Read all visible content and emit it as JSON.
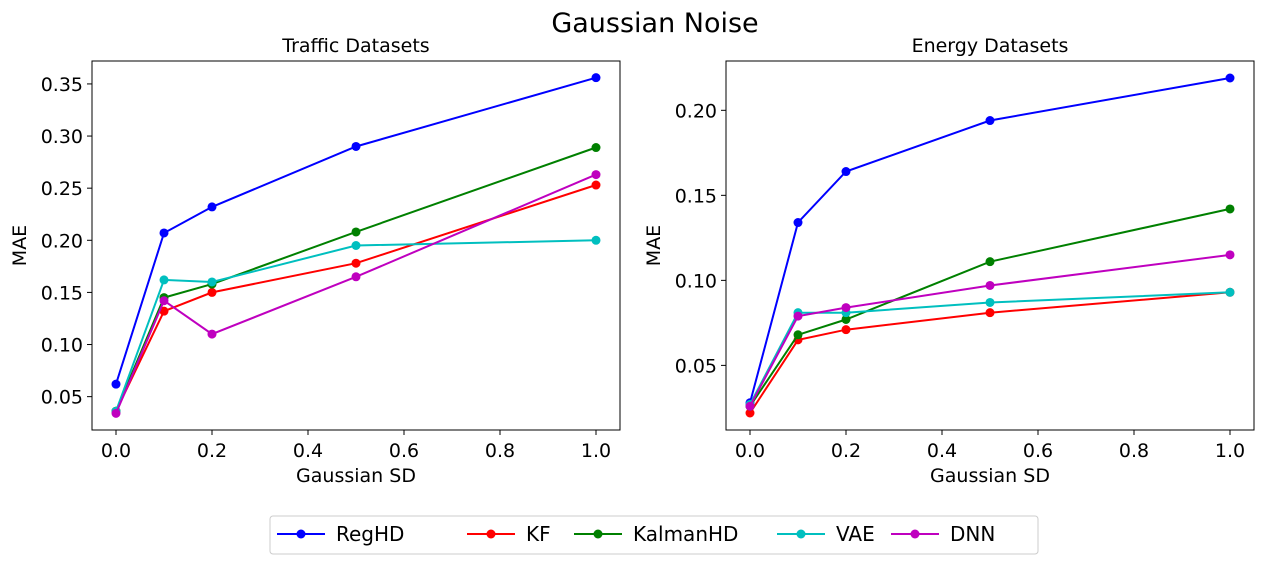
{
  "suptitle": "Gaussian Noise",
  "series_meta": [
    {
      "name": "RegHD",
      "color": "#0000ff"
    },
    {
      "name": "KF",
      "color": "#ff0000"
    },
    {
      "name": "KalmanHD",
      "color": "#008000"
    },
    {
      "name": "VAE",
      "color": "#00bfbf"
    },
    {
      "name": "DNN",
      "color": "#bf00bf"
    }
  ],
  "chart_data": [
    {
      "type": "line",
      "title": "Traffic Datasets",
      "xlabel": "Gaussian SD",
      "ylabel": "MAE",
      "x": [
        0.0,
        0.1,
        0.2,
        0.5,
        1.0
      ],
      "xlim": [
        -0.05,
        1.05
      ],
      "ylim": [
        0.018,
        0.372
      ],
      "xticks": [
        0.0,
        0.2,
        0.4,
        0.6,
        0.8,
        1.0
      ],
      "xtick_labels": [
        "0.0",
        "0.2",
        "0.4",
        "0.6",
        "0.8",
        "1.0"
      ],
      "yticks": [
        0.05,
        0.1,
        0.15,
        0.2,
        0.25,
        0.3,
        0.35
      ],
      "ytick_labels": [
        "0.05",
        "0.10",
        "0.15",
        "0.20",
        "0.25",
        "0.30",
        "0.35"
      ],
      "series": [
        {
          "name": "RegHD",
          "values": [
            0.062,
            0.207,
            0.232,
            0.29,
            0.356
          ]
        },
        {
          "name": "KF",
          "values": [
            0.036,
            0.132,
            0.15,
            0.178,
            0.253
          ]
        },
        {
          "name": "KalmanHD",
          "values": [
            0.036,
            0.145,
            0.158,
            0.208,
            0.289
          ]
        },
        {
          "name": "VAE",
          "values": [
            0.036,
            0.162,
            0.16,
            0.195,
            0.2
          ]
        },
        {
          "name": "DNN",
          "values": [
            0.034,
            0.142,
            0.11,
            0.165,
            0.263
          ]
        }
      ],
      "grid": false
    },
    {
      "type": "line",
      "title": "Energy Datasets",
      "xlabel": "Gaussian SD",
      "ylabel": "MAE",
      "x": [
        0.0,
        0.1,
        0.2,
        0.5,
        1.0
      ],
      "xlim": [
        -0.05,
        1.05
      ],
      "ylim": [
        0.012,
        0.229
      ],
      "xticks": [
        0.0,
        0.2,
        0.4,
        0.6,
        0.8,
        1.0
      ],
      "xtick_labels": [
        "0.0",
        "0.2",
        "0.4",
        "0.6",
        "0.8",
        "1.0"
      ],
      "yticks": [
        0.05,
        0.1,
        0.15,
        0.2
      ],
      "ytick_labels": [
        "0.05",
        "0.10",
        "0.15",
        "0.20"
      ],
      "series": [
        {
          "name": "RegHD",
          "values": [
            0.028,
            0.134,
            0.164,
            0.194,
            0.219
          ]
        },
        {
          "name": "KF",
          "values": [
            0.022,
            0.065,
            0.071,
            0.081,
            0.093
          ]
        },
        {
          "name": "KalmanHD",
          "values": [
            0.026,
            0.068,
            0.077,
            0.111,
            0.142
          ]
        },
        {
          "name": "VAE",
          "values": [
            0.027,
            0.081,
            0.081,
            0.087,
            0.093
          ]
        },
        {
          "name": "DNN",
          "values": [
            0.026,
            0.079,
            0.084,
            0.097,
            0.115
          ]
        }
      ],
      "grid": false
    }
  ],
  "legend": {
    "placement": "bottom-center",
    "entries": [
      "RegHD",
      "KF",
      "KalmanHD",
      "VAE",
      "DNN"
    ]
  }
}
